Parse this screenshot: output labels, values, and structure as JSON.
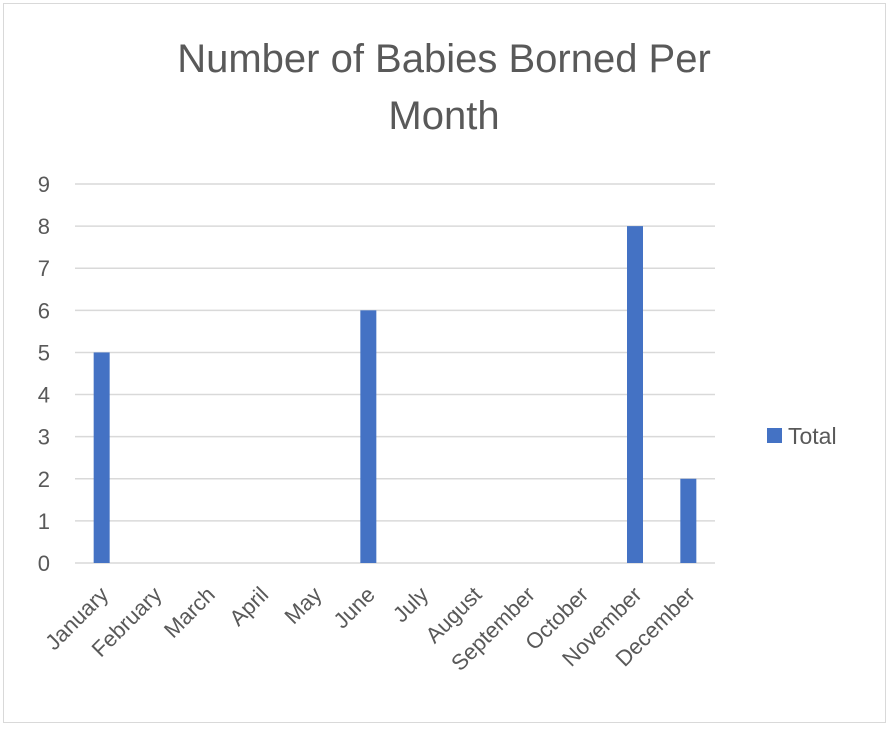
{
  "chart_data": {
    "type": "bar",
    "title_lines": [
      "Number of Babies Borned Per",
      "Month"
    ],
    "categories": [
      "January",
      "February",
      "March",
      "April",
      "May",
      "June",
      "July",
      "August",
      "September",
      "October",
      "November",
      "December"
    ],
    "series": [
      {
        "name": "Total",
        "values": [
          5,
          0,
          0,
          0,
          0,
          6,
          0,
          0,
          0,
          0,
          8,
          2
        ],
        "color": "#4472c4"
      }
    ],
    "ylim": [
      0,
      9
    ],
    "yticks": [
      "0",
      "1",
      "2",
      "3",
      "4",
      "5",
      "6",
      "7",
      "8",
      "9"
    ],
    "grid": true,
    "legend_position": "right"
  }
}
